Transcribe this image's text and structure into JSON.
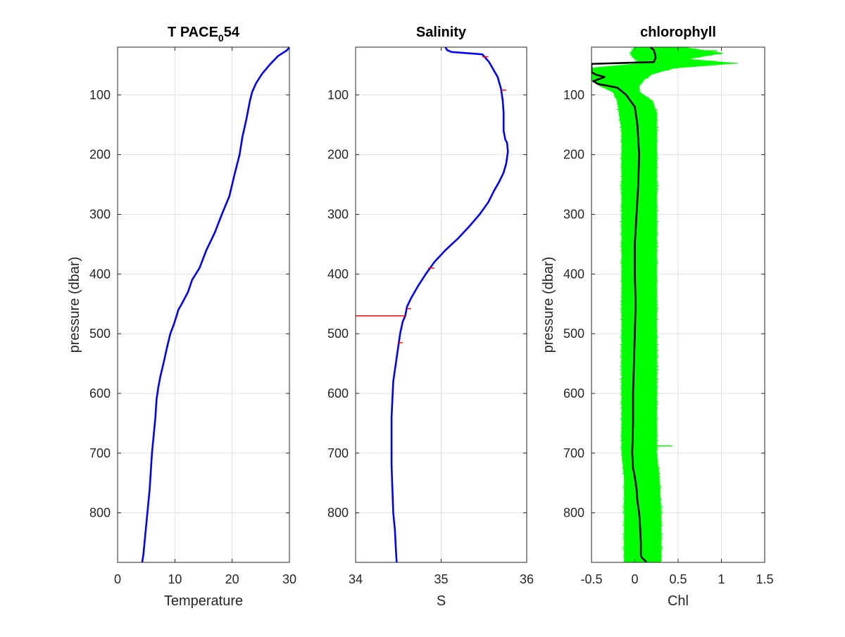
{
  "chart_data": [
    {
      "type": "line",
      "title": "T PACE",
      "title_subscript": "0",
      "title_suffix": "54",
      "xlabel": "Temperature",
      "ylabel": "pressure (dbar)",
      "xlim": [
        0,
        30
      ],
      "ylim": [
        20,
        883
      ],
      "y_reversed": true,
      "grid": true,
      "xticks": [
        0,
        10,
        20,
        30
      ],
      "yticks": [
        100,
        200,
        300,
        400,
        500,
        600,
        700,
        800
      ],
      "series": [
        {
          "color": "#0000ff",
          "x": [
            30,
            29.6,
            28,
            27.5,
            26.5,
            25.2,
            24.2,
            23.5,
            23.1,
            22.5,
            21.8,
            21.3,
            20.5,
            19.5,
            18.2,
            17,
            15.5,
            14.3,
            13,
            12.3,
            11.2,
            10.6,
            10.3,
            9.8,
            9.2,
            8.7,
            8,
            7.5,
            7.1,
            6.8,
            6.6,
            6.3,
            6,
            5.8,
            5.6,
            5.3,
            5,
            4.7,
            4.5,
            4.3
          ],
          "y": [
            20,
            25,
            35,
            40,
            50,
            65,
            80,
            95,
            110,
            140,
            170,
            200,
            230,
            270,
            300,
            330,
            360,
            390,
            410,
            430,
            450,
            460,
            470,
            485,
            500,
            520,
            550,
            570,
            590,
            610,
            640,
            670,
            700,
            730,
            760,
            790,
            820,
            850,
            870,
            883
          ]
        }
      ]
    },
    {
      "type": "line",
      "title": "Salinity",
      "xlabel": "S",
      "ylabel": "",
      "xlim": [
        34,
        36
      ],
      "ylim": [
        20,
        883
      ],
      "y_reversed": true,
      "grid": true,
      "xticks": [
        34,
        35,
        36
      ],
      "yticks": [
        100,
        200,
        300,
        400,
        500,
        600,
        700,
        800
      ],
      "series": [
        {
          "color": "#ff0000",
          "x": [
            35.05,
            35.07,
            35.12,
            35.48,
            35.5,
            35.56,
            35.62,
            35.66,
            35.68,
            35.7,
            35.72,
            35.73,
            35.73,
            35.75,
            35.77,
            35.78,
            35.76,
            35.73,
            35.68,
            35.62,
            35.55,
            35.45,
            35.33,
            35.2,
            35.05,
            34.92,
            34.82,
            34.73,
            34.65,
            34.6,
            34.58,
            34.55,
            34.52,
            34.5,
            34.47,
            34.44,
            34.43,
            34.42,
            34.42,
            34.42,
            34.43,
            34.44,
            34.46,
            34.47,
            34.48
          ],
          "y": [
            20,
            25,
            28,
            32,
            35,
            45,
            60,
            70,
            80,
            90,
            110,
            130,
            160,
            175,
            180,
            195,
            215,
            230,
            245,
            260,
            280,
            300,
            320,
            340,
            360,
            380,
            400,
            420,
            440,
            455,
            470,
            480,
            500,
            520,
            550,
            580,
            610,
            640,
            680,
            720,
            760,
            800,
            830,
            860,
            883
          ]
        },
        {
          "color": "#0000ff",
          "x": [
            35.05,
            35.07,
            35.12,
            35.48,
            35.5,
            35.56,
            35.62,
            35.66,
            35.68,
            35.7,
            35.72,
            35.73,
            35.73,
            35.75,
            35.77,
            35.78,
            35.76,
            35.73,
            35.68,
            35.62,
            35.55,
            35.45,
            35.33,
            35.2,
            35.05,
            34.92,
            34.82,
            34.73,
            34.65,
            34.6,
            34.58,
            34.55,
            34.52,
            34.5,
            34.47,
            34.44,
            34.43,
            34.42,
            34.42,
            34.42,
            34.43,
            34.44,
            34.46,
            34.47,
            34.48
          ],
          "y": [
            20,
            25,
            28,
            32,
            35,
            45,
            60,
            70,
            80,
            90,
            110,
            130,
            160,
            175,
            180,
            195,
            215,
            230,
            245,
            260,
            280,
            300,
            320,
            340,
            360,
            380,
            400,
            420,
            440,
            455,
            470,
            480,
            500,
            520,
            550,
            580,
            610,
            640,
            680,
            720,
            760,
            800,
            830,
            860,
            883
          ]
        }
      ],
      "spikes": [
        {
          "y": 470,
          "x0": 34.0,
          "x1": 34.58
        },
        {
          "y": 458,
          "x0": 34.6,
          "x1": 34.65
        },
        {
          "y": 390,
          "x0": 34.85,
          "x1": 34.92
        },
        {
          "y": 36,
          "x0": 35.48,
          "x1": 35.55
        },
        {
          "y": 92,
          "x0": 35.7,
          "x1": 35.76
        },
        {
          "y": 515,
          "x0": 34.5,
          "x1": 34.55
        }
      ]
    },
    {
      "type": "line",
      "title": "chlorophyll",
      "xlabel": "Chl",
      "ylabel": "pressure (dbar)",
      "xlim": [
        -0.5,
        1.5
      ],
      "ylim": [
        20,
        883
      ],
      "y_reversed": true,
      "grid": true,
      "xticks": [
        -0.5,
        0,
        0.5,
        1,
        1.5
      ],
      "yticks": [
        100,
        200,
        300,
        400,
        500,
        600,
        700,
        800
      ],
      "series": [
        {
          "color": "#00ff00",
          "band": [
            [
              20,
              0.0,
              0.55
            ],
            [
              30,
              -0.05,
              1.0
            ],
            [
              40,
              0.0,
              0.6
            ],
            [
              47,
              0.1,
              1.15
            ],
            [
              55,
              -0.5,
              0.45
            ],
            [
              65,
              -0.5,
              0.2
            ],
            [
              75,
              -0.5,
              0.1
            ],
            [
              85,
              -0.4,
              0.05
            ],
            [
              95,
              -0.25,
              0.05
            ],
            [
              110,
              -0.2,
              0.2
            ],
            [
              130,
              -0.18,
              0.25
            ],
            [
              160,
              -0.15,
              0.25
            ],
            [
              200,
              -0.15,
              0.25
            ],
            [
              300,
              -0.15,
              0.25
            ],
            [
              400,
              -0.15,
              0.25
            ],
            [
              500,
              -0.15,
              0.25
            ],
            [
              600,
              -0.15,
              0.25
            ],
            [
              700,
              -0.15,
              0.25
            ],
            [
              740,
              -0.12,
              0.28
            ],
            [
              800,
              -0.12,
              0.3
            ],
            [
              883,
              -0.12,
              0.3
            ]
          ],
          "spikes": [
            {
              "y": 688,
              "x0": -0.1,
              "x1": 0.43
            },
            {
              "y": 26,
              "x0": 0.2,
              "x1": 0.95
            },
            {
              "y": 31,
              "x0": 0.25,
              "x1": 1.0
            },
            {
              "y": 47,
              "x0": 0.3,
              "x1": 1.15
            }
          ]
        },
        {
          "color": "#000000",
          "x": [
            0.18,
            0.22,
            0.23,
            0.24,
            0.22,
            -0.5,
            -0.5,
            -0.45,
            -0.35,
            -0.48,
            -0.42,
            -0.3,
            -0.2,
            -0.1,
            0.0,
            0.03,
            0.05,
            0.04,
            0.02,
            0.0,
            0.0,
            0.01,
            0.0,
            -0.01,
            -0.02,
            -0.02,
            -0.03,
            -0.02,
            -0.01,
            0.0,
            0.02,
            0.03,
            0.05,
            0.06,
            0.07,
            0.07,
            0.08,
            0.12,
            0.13
          ],
          "y": [
            20,
            25,
            30,
            38,
            45,
            48,
            62,
            66,
            70,
            77,
            82,
            85,
            88,
            100,
            120,
            150,
            200,
            250,
            300,
            350,
            400,
            450,
            500,
            550,
            600,
            650,
            700,
            725,
            732,
            740,
            760,
            780,
            800,
            820,
            850,
            870,
            875,
            880,
            883
          ]
        }
      ]
    }
  ]
}
